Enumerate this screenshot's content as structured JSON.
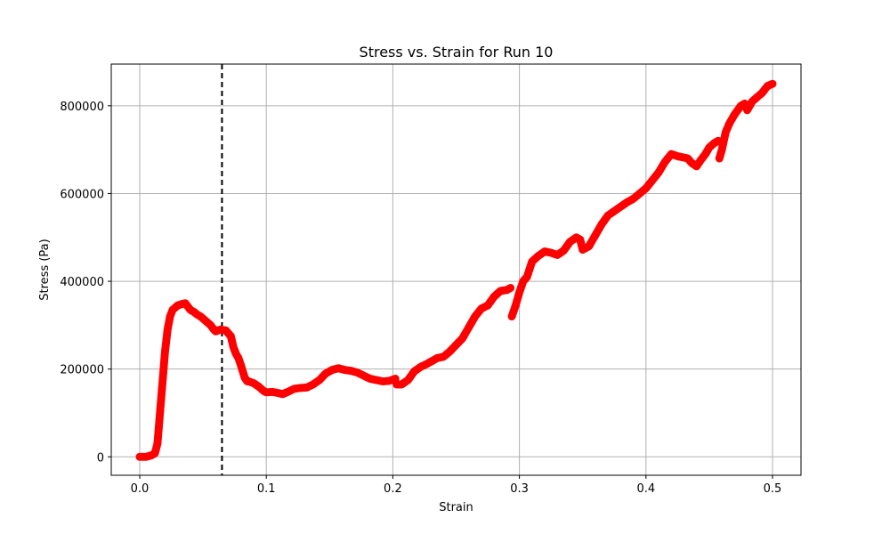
{
  "chart_data": {
    "type": "scatter",
    "title": "Stress vs. Strain for Run 10",
    "xlabel": "Strain",
    "ylabel": "Stress (Pa)",
    "xlim": [
      -0.0225,
      0.5225
    ],
    "ylim": [
      -42000,
      895000
    ],
    "xticks": [
      0.0,
      0.1,
      0.2,
      0.3,
      0.4,
      0.5
    ],
    "xtick_labels": [
      "0.0",
      "0.1",
      "0.2",
      "0.3",
      "0.4",
      "0.5"
    ],
    "yticks": [
      0,
      200000,
      400000,
      600000,
      800000
    ],
    "ytick_labels": [
      "0",
      "200000",
      "400000",
      "600000",
      "800000"
    ],
    "grid": true,
    "marker_color": "#ff0000",
    "reference_line": {
      "x": 0.065,
      "style": "dashed",
      "color": "#000000"
    },
    "series": [
      {
        "x": [
          0.0,
          0.005,
          0.009,
          0.012,
          0.014,
          0.016,
          0.018,
          0.02,
          0.022,
          0.024,
          0.026,
          0.028,
          0.03,
          0.033,
          0.036,
          0.04,
          0.043,
          0.045,
          0.048,
          0.052,
          0.056,
          0.058,
          0.06,
          0.064,
          0.068,
          0.072,
          0.074,
          0.076,
          0.078,
          0.08,
          0.083,
          0.085,
          0.086,
          0.09,
          0.094,
          0.098,
          0.1,
          0.105,
          0.11,
          0.113,
          0.117,
          0.122,
          0.127,
          0.132,
          0.137,
          0.142,
          0.147,
          0.152,
          0.157,
          0.162,
          0.167,
          0.172,
          0.177,
          0.182,
          0.187,
          0.192,
          0.197,
          0.202,
          0.203,
          0.207,
          0.212,
          0.217,
          0.222,
          0.227,
          0.232,
          0.235,
          0.24,
          0.245,
          0.25,
          0.255,
          0.26,
          0.265,
          0.27,
          0.275,
          0.28,
          0.285,
          0.29,
          0.293,
          0.294,
          0.297,
          0.3,
          0.303,
          0.306,
          0.31,
          0.315,
          0.32,
          0.325,
          0.33,
          0.335,
          0.34,
          0.345,
          0.348,
          0.35,
          0.355,
          0.36,
          0.365,
          0.37,
          0.375,
          0.38,
          0.385,
          0.39,
          0.395,
          0.4,
          0.405,
          0.41,
          0.415,
          0.42,
          0.425,
          0.43,
          0.433,
          0.436,
          0.44,
          0.443,
          0.447,
          0.45,
          0.454,
          0.457,
          0.458,
          0.46,
          0.463,
          0.466,
          0.47,
          0.475,
          0.478,
          0.48,
          0.484,
          0.488,
          0.492,
          0.496,
          0.5
        ],
        "y": [
          0,
          0,
          3000,
          8000,
          30000,
          100000,
          170000,
          240000,
          290000,
          320000,
          335000,
          340000,
          345000,
          348000,
          350000,
          335000,
          330000,
          325000,
          320000,
          310000,
          300000,
          292000,
          286000,
          290000,
          288000,
          275000,
          250000,
          235000,
          225000,
          208000,
          180000,
          172000,
          172000,
          168000,
          160000,
          150000,
          147000,
          148000,
          145000,
          143000,
          148000,
          155000,
          157000,
          158000,
          165000,
          175000,
          190000,
          198000,
          202000,
          198000,
          196000,
          192000,
          185000,
          178000,
          175000,
          172000,
          173000,
          178000,
          165000,
          165000,
          175000,
          195000,
          205000,
          212000,
          220000,
          225000,
          228000,
          240000,
          255000,
          270000,
          295000,
          320000,
          338000,
          345000,
          365000,
          378000,
          380000,
          385000,
          320000,
          345000,
          375000,
          400000,
          410000,
          445000,
          458000,
          468000,
          465000,
          460000,
          470000,
          490000,
          500000,
          495000,
          472000,
          480000,
          505000,
          530000,
          550000,
          560000,
          570000,
          580000,
          588000,
          600000,
          612000,
          630000,
          648000,
          672000,
          690000,
          685000,
          682000,
          680000,
          670000,
          662000,
          675000,
          690000,
          705000,
          715000,
          720000,
          680000,
          700000,
          740000,
          760000,
          780000,
          800000,
          805000,
          790000,
          810000,
          820000,
          830000,
          845000,
          850000
        ]
      }
    ]
  }
}
